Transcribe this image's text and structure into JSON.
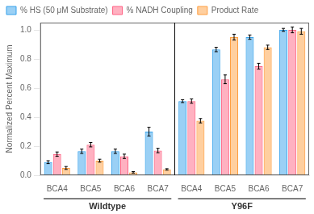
{
  "chart_data": {
    "type": "bar",
    "categories": [
      "BCA4",
      "BCA5",
      "BCA6",
      "BCA7",
      "BCA4",
      "BCA5",
      "BCA6",
      "BCA7"
    ],
    "annotations": [
      "Wildtype",
      "Y96F"
    ],
    "series": [
      {
        "name": "% HS (50 μM Substrate)",
        "values": [
          0.09,
          0.165,
          0.165,
          0.3,
          0.51,
          0.865,
          0.95,
          1.0
        ],
        "errors": [
          0.01,
          0.015,
          0.015,
          0.03,
          0.01,
          0.015,
          0.015,
          0.01
        ]
      },
      {
        "name": "% NADH Coupling",
        "values": [
          0.145,
          0.21,
          0.13,
          0.17,
          0.51,
          0.66,
          0.75,
          1.0
        ],
        "errors": [
          0.015,
          0.015,
          0.015,
          0.015,
          0.015,
          0.03,
          0.02,
          0.02
        ]
      },
      {
        "name": "Product Rate",
        "values": [
          0.05,
          0.1,
          0.02,
          0.04,
          0.375,
          0.95,
          0.88,
          0.99
        ],
        "errors": [
          0.01,
          0.01,
          0.005,
          0.005,
          0.015,
          0.02,
          0.015,
          0.02
        ]
      }
    ],
    "ylabel": "Normalized Percent Maximum",
    "ylim": [
      0,
      1.05
    ],
    "yticks": [
      {
        "value": 0.0,
        "label": "0.0"
      },
      0.2,
      0.4,
      0.6,
      0.8,
      {
        "value": 1.0,
        "label": "1.0"
      }
    ],
    "grid": false,
    "legend": "upper left"
  }
}
